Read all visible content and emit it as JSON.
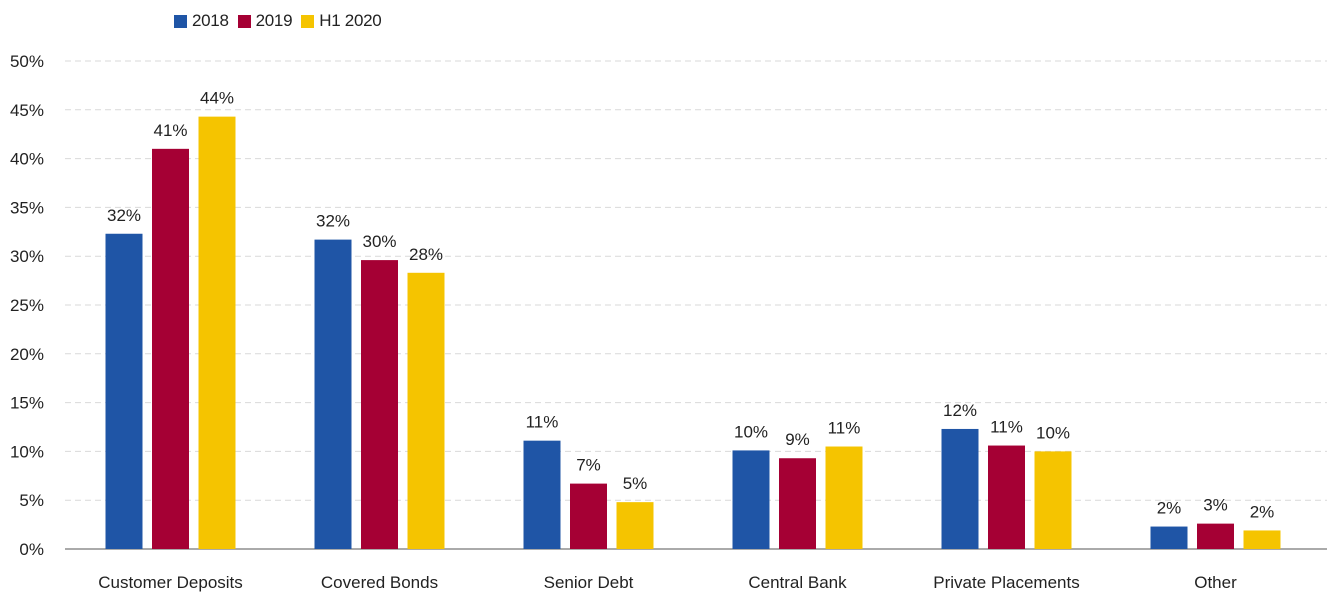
{
  "chart_data": {
    "type": "bar",
    "categories": [
      "Customer Deposits",
      "Covered Bonds",
      "Senior Debt",
      "Central Bank",
      "Private Placements",
      "Other"
    ],
    "series": [
      {
        "name": "2018",
        "color": "#1f55a6",
        "values": [
          32.3,
          31.7,
          11.1,
          10.1,
          12.3,
          2.3
        ],
        "labels": [
          "32%",
          "32%",
          "11%",
          "10%",
          "12%",
          "2%"
        ]
      },
      {
        "name": "2019",
        "color": "#a50034",
        "values": [
          41.0,
          29.6,
          6.7,
          9.3,
          10.6,
          2.6
        ],
        "labels": [
          "41%",
          "30%",
          "7%",
          "9%",
          "11%",
          "3%"
        ]
      },
      {
        "name": "H1 2020",
        "color": "#f5c400",
        "values": [
          44.3,
          28.3,
          4.8,
          10.5,
          10.0,
          1.9
        ],
        "labels": [
          "44%",
          "28%",
          "5%",
          "11%",
          "10%",
          "2%"
        ]
      }
    ],
    "yticks": [
      "0%",
      "5%",
      "10%",
      "15%",
      "20%",
      "25%",
      "30%",
      "35%",
      "40%",
      "45%",
      "50%"
    ],
    "ylim": [
      0,
      50
    ],
    "grid": true,
    "legend_position": "top-left"
  }
}
